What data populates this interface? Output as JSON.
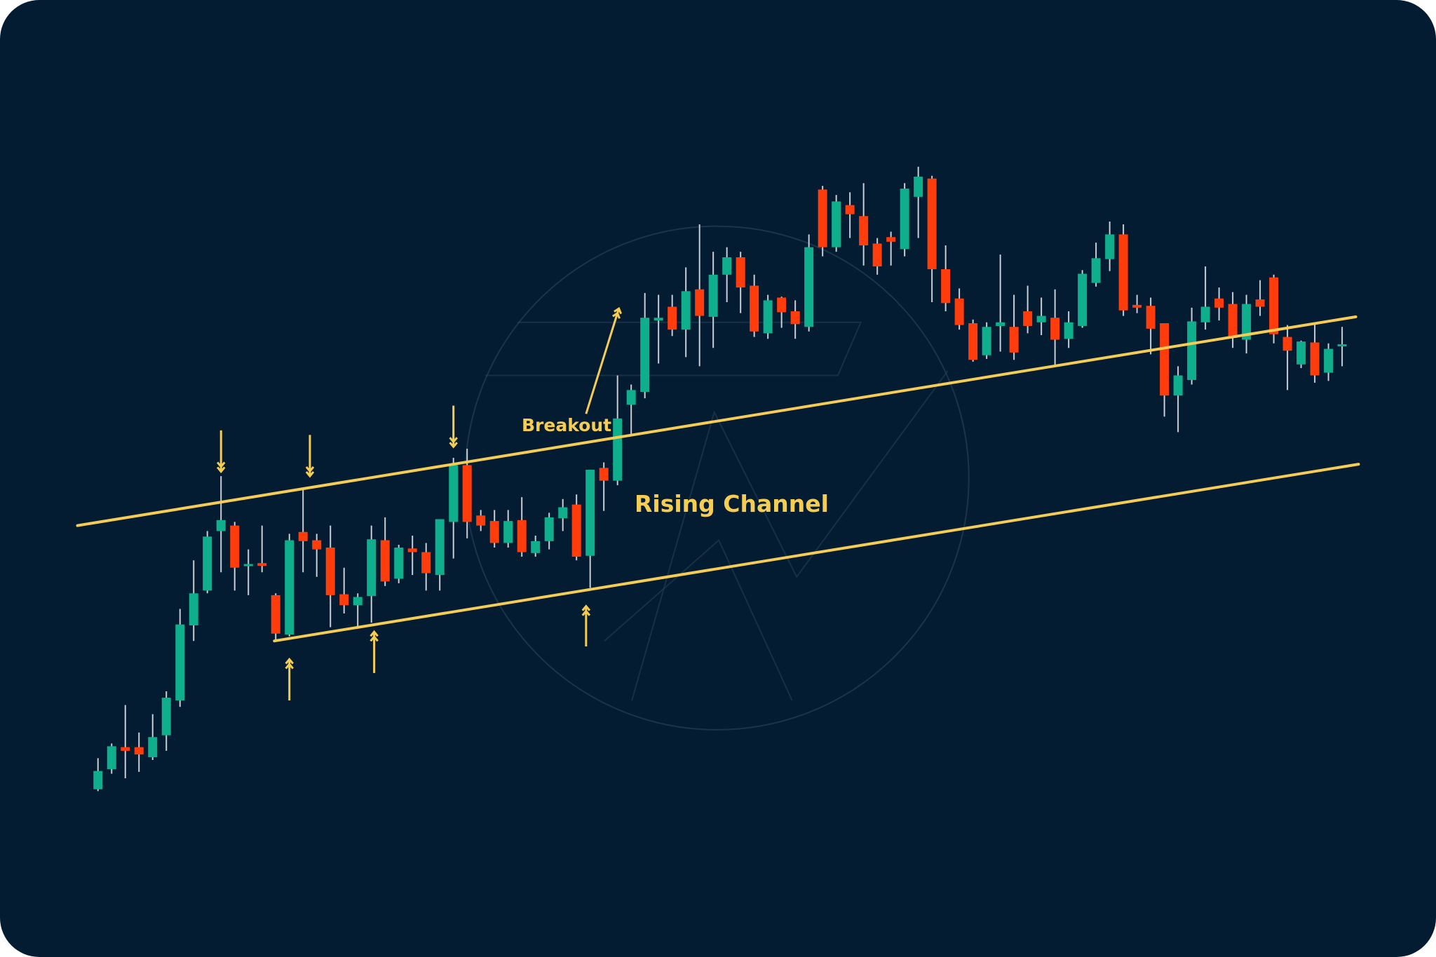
{
  "chart_data": {
    "type": "candlestick",
    "title": "",
    "xlabel": "",
    "ylabel": "",
    "grid": false,
    "axes_visible": false,
    "colors": {
      "background": "#031c31",
      "up": "#0fae8c",
      "down": "#ff3d0c",
      "wick": "#c9ced6",
      "annotation": "#f5cd55",
      "watermark": "#2a4458"
    },
    "candles_ohlc": [
      [
        27.6,
        34.4,
        27.2,
        31.6
      ],
      [
        32,
        37.6,
        31,
        37
      ],
      [
        36.8,
        46,
        30,
        36
      ],
      [
        36.8,
        40,
        31.4,
        35.2
      ],
      [
        34.6,
        44,
        34,
        39
      ],
      [
        39.4,
        49,
        36,
        47.6
      ],
      [
        47,
        67,
        45.6,
        63.6
      ],
      [
        63.4,
        77.6,
        60,
        70.4
      ],
      [
        71,
        84,
        70.4,
        82.8
      ],
      [
        84,
        96,
        75,
        86.4
      ],
      [
        85.2,
        86,
        71,
        76
      ],
      [
        76.4,
        80,
        70,
        76.8
      ],
      [
        77,
        85.2,
        75,
        76.4
      ],
      [
        70,
        70.4,
        60,
        61.6
      ],
      [
        61.4,
        83.4,
        61,
        82
      ],
      [
        83.8,
        93,
        75,
        81.8
      ],
      [
        82,
        83.4,
        74,
        80
      ],
      [
        80.4,
        85.2,
        63,
        70
      ],
      [
        70.2,
        76,
        66,
        67.8
      ],
      [
        67.8,
        70.4,
        63,
        69.6
      ],
      [
        69.8,
        85.2,
        64,
        82.2
      ],
      [
        82,
        87,
        72,
        73
      ],
      [
        73.6,
        81,
        72.6,
        80.4
      ],
      [
        80.2,
        83,
        74.4,
        79.4
      ],
      [
        79.4,
        81.4,
        71,
        74.8
      ],
      [
        74.4,
        86.6,
        71,
        86.6
      ],
      [
        86,
        100,
        78,
        98.4
      ],
      [
        98.4,
        102,
        82.4,
        86
      ],
      [
        87.4,
        88.6,
        84,
        85.2
      ],
      [
        86.2,
        88.6,
        80.4,
        81.4
      ],
      [
        81.4,
        88.6,
        80.4,
        86.2
      ],
      [
        86.4,
        91.4,
        78.4,
        79.4
      ],
      [
        79.2,
        83,
        78.4,
        81.8
      ],
      [
        81.8,
        88,
        80,
        87
      ],
      [
        86.8,
        91,
        84,
        89.2
      ],
      [
        89.8,
        92,
        77.6,
        78.4
      ],
      [
        78.6,
        97.4,
        71.6,
        97.4
      ],
      [
        97.8,
        99,
        88.4,
        95
      ],
      [
        95,
        118,
        94,
        108.6
      ],
      [
        111.6,
        116,
        105,
        114.8
      ],
      [
        114.4,
        136,
        113,
        130.6
      ],
      [
        130,
        135.6,
        120.6,
        130.6
      ],
      [
        133,
        135.6,
        126.6,
        128
      ],
      [
        128,
        141.6,
        122,
        136.4
      ],
      [
        136.8,
        151,
        120,
        131
      ],
      [
        130.8,
        145,
        124,
        140
      ],
      [
        140,
        146,
        134,
        143.8
      ],
      [
        143.8,
        145,
        131.6,
        137.2
      ],
      [
        137.6,
        140,
        126.4,
        127.6
      ],
      [
        127.2,
        135.6,
        126,
        134.4
      ],
      [
        135,
        135.2,
        128.4,
        131.8
      ],
      [
        132,
        134.4,
        126,
        129.2
      ],
      [
        128.6,
        148.8,
        127.6,
        146
      ],
      [
        158.6,
        159.4,
        144,
        146
      ],
      [
        146,
        157.4,
        145,
        156
      ],
      [
        155.2,
        158,
        148,
        153.2
      ],
      [
        152.8,
        160,
        142,
        146.4
      ],
      [
        146.8,
        148,
        140,
        141.8
      ],
      [
        148.2,
        149.4,
        142,
        147.2
      ],
      [
        145.6,
        160,
        144,
        158.8
      ],
      [
        157,
        163.6,
        148,
        161.4
      ],
      [
        161,
        161.6,
        134,
        141.2
      ],
      [
        141.2,
        146.4,
        132,
        133.8
      ],
      [
        134.8,
        137,
        128,
        129
      ],
      [
        129.4,
        130.2,
        121,
        121.4
      ],
      [
        122.4,
        129.6,
        121.6,
        128.6
      ],
      [
        128.8,
        144.4,
        123.2,
        129.6
      ],
      [
        128.6,
        135.6,
        121.4,
        123
      ],
      [
        132,
        137.6,
        127.2,
        128.8
      ],
      [
        129.6,
        135,
        126.8,
        131
      ],
      [
        130.6,
        136.8,
        120,
        125.8
      ],
      [
        126,
        132,
        124,
        129.6
      ],
      [
        128.8,
        141,
        128.4,
        140.2
      ],
      [
        138.2,
        147,
        137.4,
        143.6
      ],
      [
        143.4,
        151.6,
        140.8,
        148.8
      ],
      [
        148.8,
        151,
        131,
        132.2
      ],
      [
        133.4,
        135.6,
        131.6,
        132.8
      ],
      [
        133.2,
        135,
        122.6,
        128.2
      ],
      [
        129.4,
        129.4,
        109,
        113.6
      ],
      [
        113.6,
        120,
        105.6,
        118
      ],
      [
        117,
        132.8,
        116,
        129.8
      ],
      [
        129.6,
        141.8,
        128,
        133
      ],
      [
        134.8,
        137.2,
        130,
        132.8
      ],
      [
        133.6,
        136.2,
        124,
        126.2
      ],
      [
        125.8,
        135.6,
        122.8,
        133.6
      ],
      [
        134.6,
        138.8,
        131,
        133
      ],
      [
        139.4,
        140,
        125,
        127
      ],
      [
        126.4,
        129,
        114.8,
        123.4
      ],
      [
        120.4,
        125.6,
        119.6,
        125.4
      ],
      [
        125.2,
        129.2,
        116.4,
        118
      ],
      [
        118.6,
        125,
        116.8,
        123.8
      ],
      [
        124.6,
        128.6,
        120,
        124.8
      ]
    ],
    "trendlines": [
      {
        "role": "upper-channel",
        "from": [
          -1.5,
          85.2
        ],
        "to": [
          92,
          130.8
        ]
      },
      {
        "role": "lower-channel",
        "from": [
          12.9,
          60
        ],
        "to": [
          92.2,
          98.6
        ]
      }
    ],
    "resistance_touch_arrows": [
      {
        "candle": 9,
        "tip": 97,
        "tail": 106
      },
      {
        "candle": 15.5,
        "tip": 96,
        "tail": 105
      },
      {
        "candle": 26,
        "tip": 102.4,
        "tail": 111.4
      }
    ],
    "support_touch_arrows": [
      {
        "candle": 14,
        "tip": 56,
        "tail": 47
      },
      {
        "candle": 20.2,
        "tip": 62,
        "tail": 53
      },
      {
        "candle": 35.7,
        "tip": 67.6,
        "tail": 58.8
      }
    ],
    "breakout_arrow": {
      "from": [
        35.7,
        109.6
      ],
      "to": [
        38.1,
        132.6
      ]
    },
    "annotations": {
      "breakout": "Breakout",
      "pattern": "Rising Channel"
    }
  }
}
